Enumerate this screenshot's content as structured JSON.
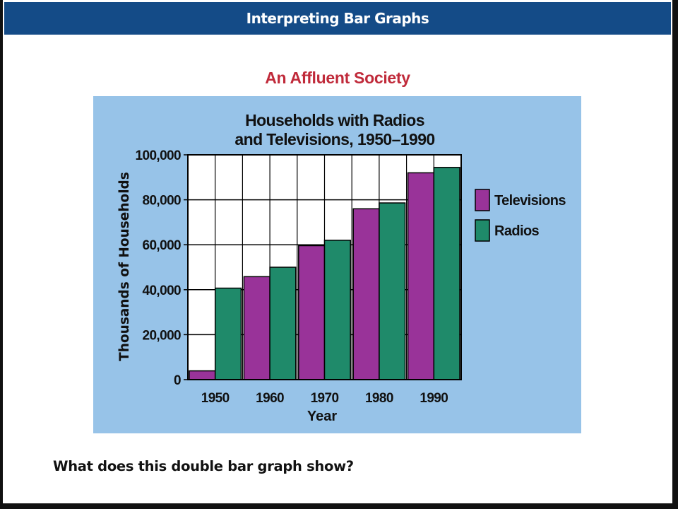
{
  "slide": {
    "header": "Interpreting Bar Graphs",
    "subtitle": "An Affluent Society",
    "question": "What does this double bar graph show?"
  },
  "colors": {
    "header_bg": "#144b87",
    "subtitle": "#c02a3a",
    "chart_bg": "#97c3e8",
    "plot_bg": "#ffffff",
    "televisions": "#993399",
    "radios": "#1f8a6a"
  },
  "chart_data": {
    "type": "bar",
    "title": [
      "Households with Radios",
      "and Televisions, 1950–1990"
    ],
    "xlabel": "Year",
    "ylabel": "Thousands of Households",
    "categories": [
      "1950",
      "1960",
      "1970",
      "1980",
      "1990"
    ],
    "ylim": [
      0,
      100000
    ],
    "yticks": [
      0,
      20000,
      40000,
      60000,
      80000,
      100000
    ],
    "ytick_labels": [
      "0",
      "20,000",
      "40,000",
      "60,000",
      "80,000",
      "100,000"
    ],
    "grid": true,
    "legend_position": "right",
    "series": [
      {
        "name": "Televisions",
        "values": [
          3900,
          45800,
          59600,
          76000,
          92000
        ]
      },
      {
        "name": "Radios",
        "values": [
          40700,
          50000,
          62000,
          78600,
          94400
        ]
      }
    ]
  }
}
